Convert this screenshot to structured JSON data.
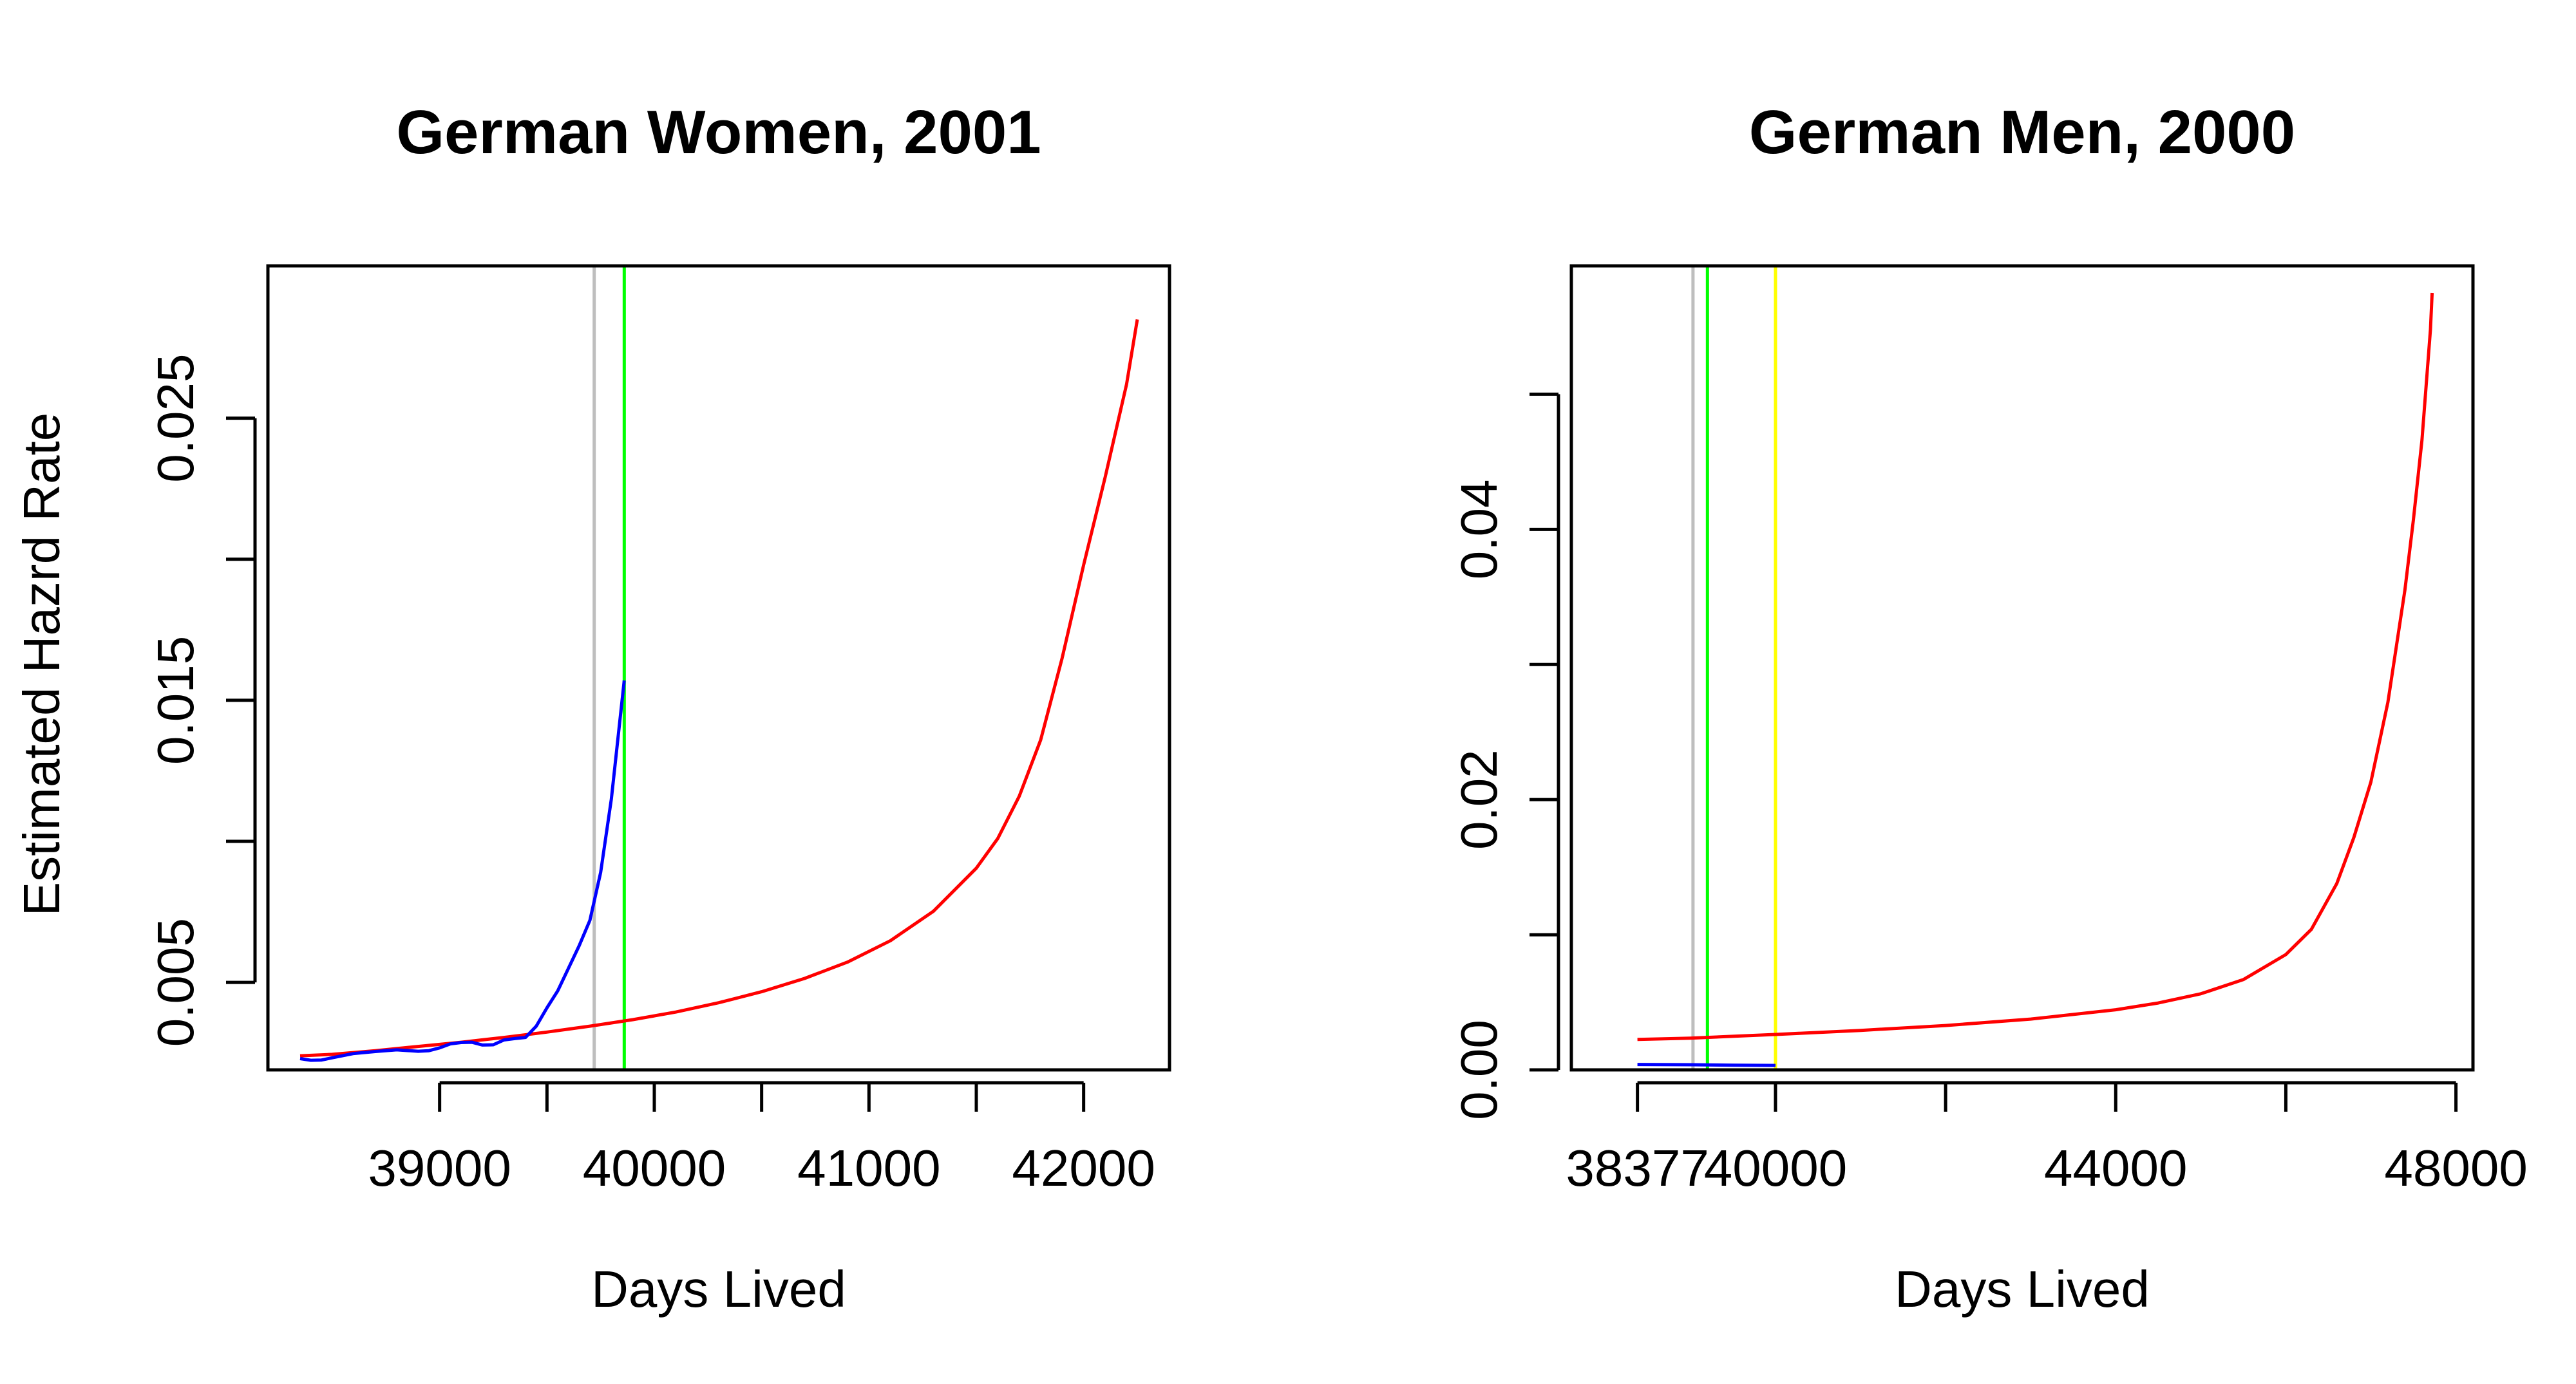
{
  "colors": {
    "red": "#ff0000",
    "blue": "#0000ff",
    "gray": "#bebebe",
    "green": "#00ff00",
    "yellow": "#ffff00",
    "axis": "#000000"
  },
  "chart_data": [
    {
      "type": "line",
      "title": "German Women, 2001",
      "xlabel": "Days Lived",
      "ylabel": "Estimated Hazrd Rate",
      "xlim": [
        38200,
        42400
      ],
      "ylim": [
        0.0019,
        0.0304
      ],
      "x_ticks": [
        39000,
        39500,
        40000,
        40500,
        41000,
        41500,
        42000
      ],
      "x_tick_labels": [
        "39000",
        "",
        "40000",
        "",
        "41000",
        "",
        "42000"
      ],
      "y_ticks": [
        0.005,
        0.01,
        0.015,
        0.02,
        0.025
      ],
      "y_tick_labels": [
        "0.005",
        "",
        "0.015",
        "",
        "0.025"
      ],
      "grid": false,
      "series": [
        {
          "color": "red",
          "x": [
            38350,
            38500,
            38700,
            38900,
            39100,
            39300,
            39500,
            39700,
            39900,
            40100,
            40300,
            40500,
            40700,
            40900,
            41100,
            41300,
            41500,
            41600,
            41700,
            41800,
            41900,
            42000,
            42100,
            42200,
            42250
          ],
          "values": [
            0.0024,
            0.00245,
            0.00258,
            0.00273,
            0.00288,
            0.00305,
            0.00324,
            0.00345,
            0.00368,
            0.00395,
            0.00428,
            0.00467,
            0.00514,
            0.00572,
            0.00648,
            0.00752,
            0.00905,
            0.0101,
            0.0116,
            0.0136,
            0.0165,
            0.0198,
            0.0229,
            0.0262,
            0.0285
          ]
        },
        {
          "color": "blue",
          "x": [
            38350,
            38400,
            38450,
            38500,
            38600,
            38700,
            38800,
            38900,
            38950,
            39000,
            39050,
            39100,
            39150,
            39200,
            39250,
            39300,
            39350,
            39400,
            39450,
            39500,
            39550,
            39600,
            39650,
            39700,
            39750,
            39800,
            39860
          ],
          "values": [
            0.0023,
            0.00224,
            0.00225,
            0.00233,
            0.00248,
            0.00255,
            0.00261,
            0.00256,
            0.00258,
            0.00268,
            0.00282,
            0.00287,
            0.00288,
            0.00278,
            0.00279,
            0.00296,
            0.00301,
            0.00305,
            0.00345,
            0.0041,
            0.0047,
            0.0055,
            0.0063,
            0.0072,
            0.0089,
            0.0115,
            0.0157
          ]
        }
      ],
      "vlines": [
        {
          "x": 39720,
          "color": "gray"
        },
        {
          "x": 39860,
          "color": "green"
        }
      ]
    },
    {
      "type": "line",
      "title": "German Men, 2000",
      "xlabel": "Days Lived",
      "ylabel": "",
      "xlim": [
        37600,
        48200
      ],
      "ylim": [
        0.0,
        0.0595
      ],
      "x_ticks": [
        38377,
        40000,
        42000,
        44000,
        46000,
        48000
      ],
      "x_tick_labels": [
        "38377",
        "40000",
        "",
        "44000",
        "",
        "48000"
      ],
      "y_ticks": [
        0.0,
        0.01,
        0.02,
        0.03,
        0.04,
        0.05
      ],
      "y_tick_labels": [
        "0.00",
        "",
        "0.02",
        "",
        "0.04",
        ""
      ],
      "grid": false,
      "series": [
        {
          "color": "red",
          "x": [
            38377,
            39000,
            40000,
            41000,
            42000,
            43000,
            44000,
            44500,
            45000,
            45500,
            46000,
            46300,
            46600,
            46800,
            47000,
            47200,
            47400,
            47500,
            47600,
            47700,
            47720
          ],
          "values": [
            0.00225,
            0.00235,
            0.00262,
            0.00292,
            0.00328,
            0.00376,
            0.00445,
            0.00495,
            0.00563,
            0.00668,
            0.00853,
            0.0104,
            0.0138,
            0.0172,
            0.0213,
            0.0272,
            0.0355,
            0.0407,
            0.0466,
            0.0548,
            0.0575
          ]
        },
        {
          "color": "blue",
          "x": [
            38377,
            39000,
            39500,
            40000
          ],
          "values": [
            0.0004,
            0.00038,
            0.00035,
            0.00033
          ]
        }
      ],
      "vlines": [
        {
          "x": 39030,
          "color": "gray"
        },
        {
          "x": 39200,
          "color": "green"
        },
        {
          "x": 40000,
          "color": "yellow"
        }
      ]
    }
  ]
}
